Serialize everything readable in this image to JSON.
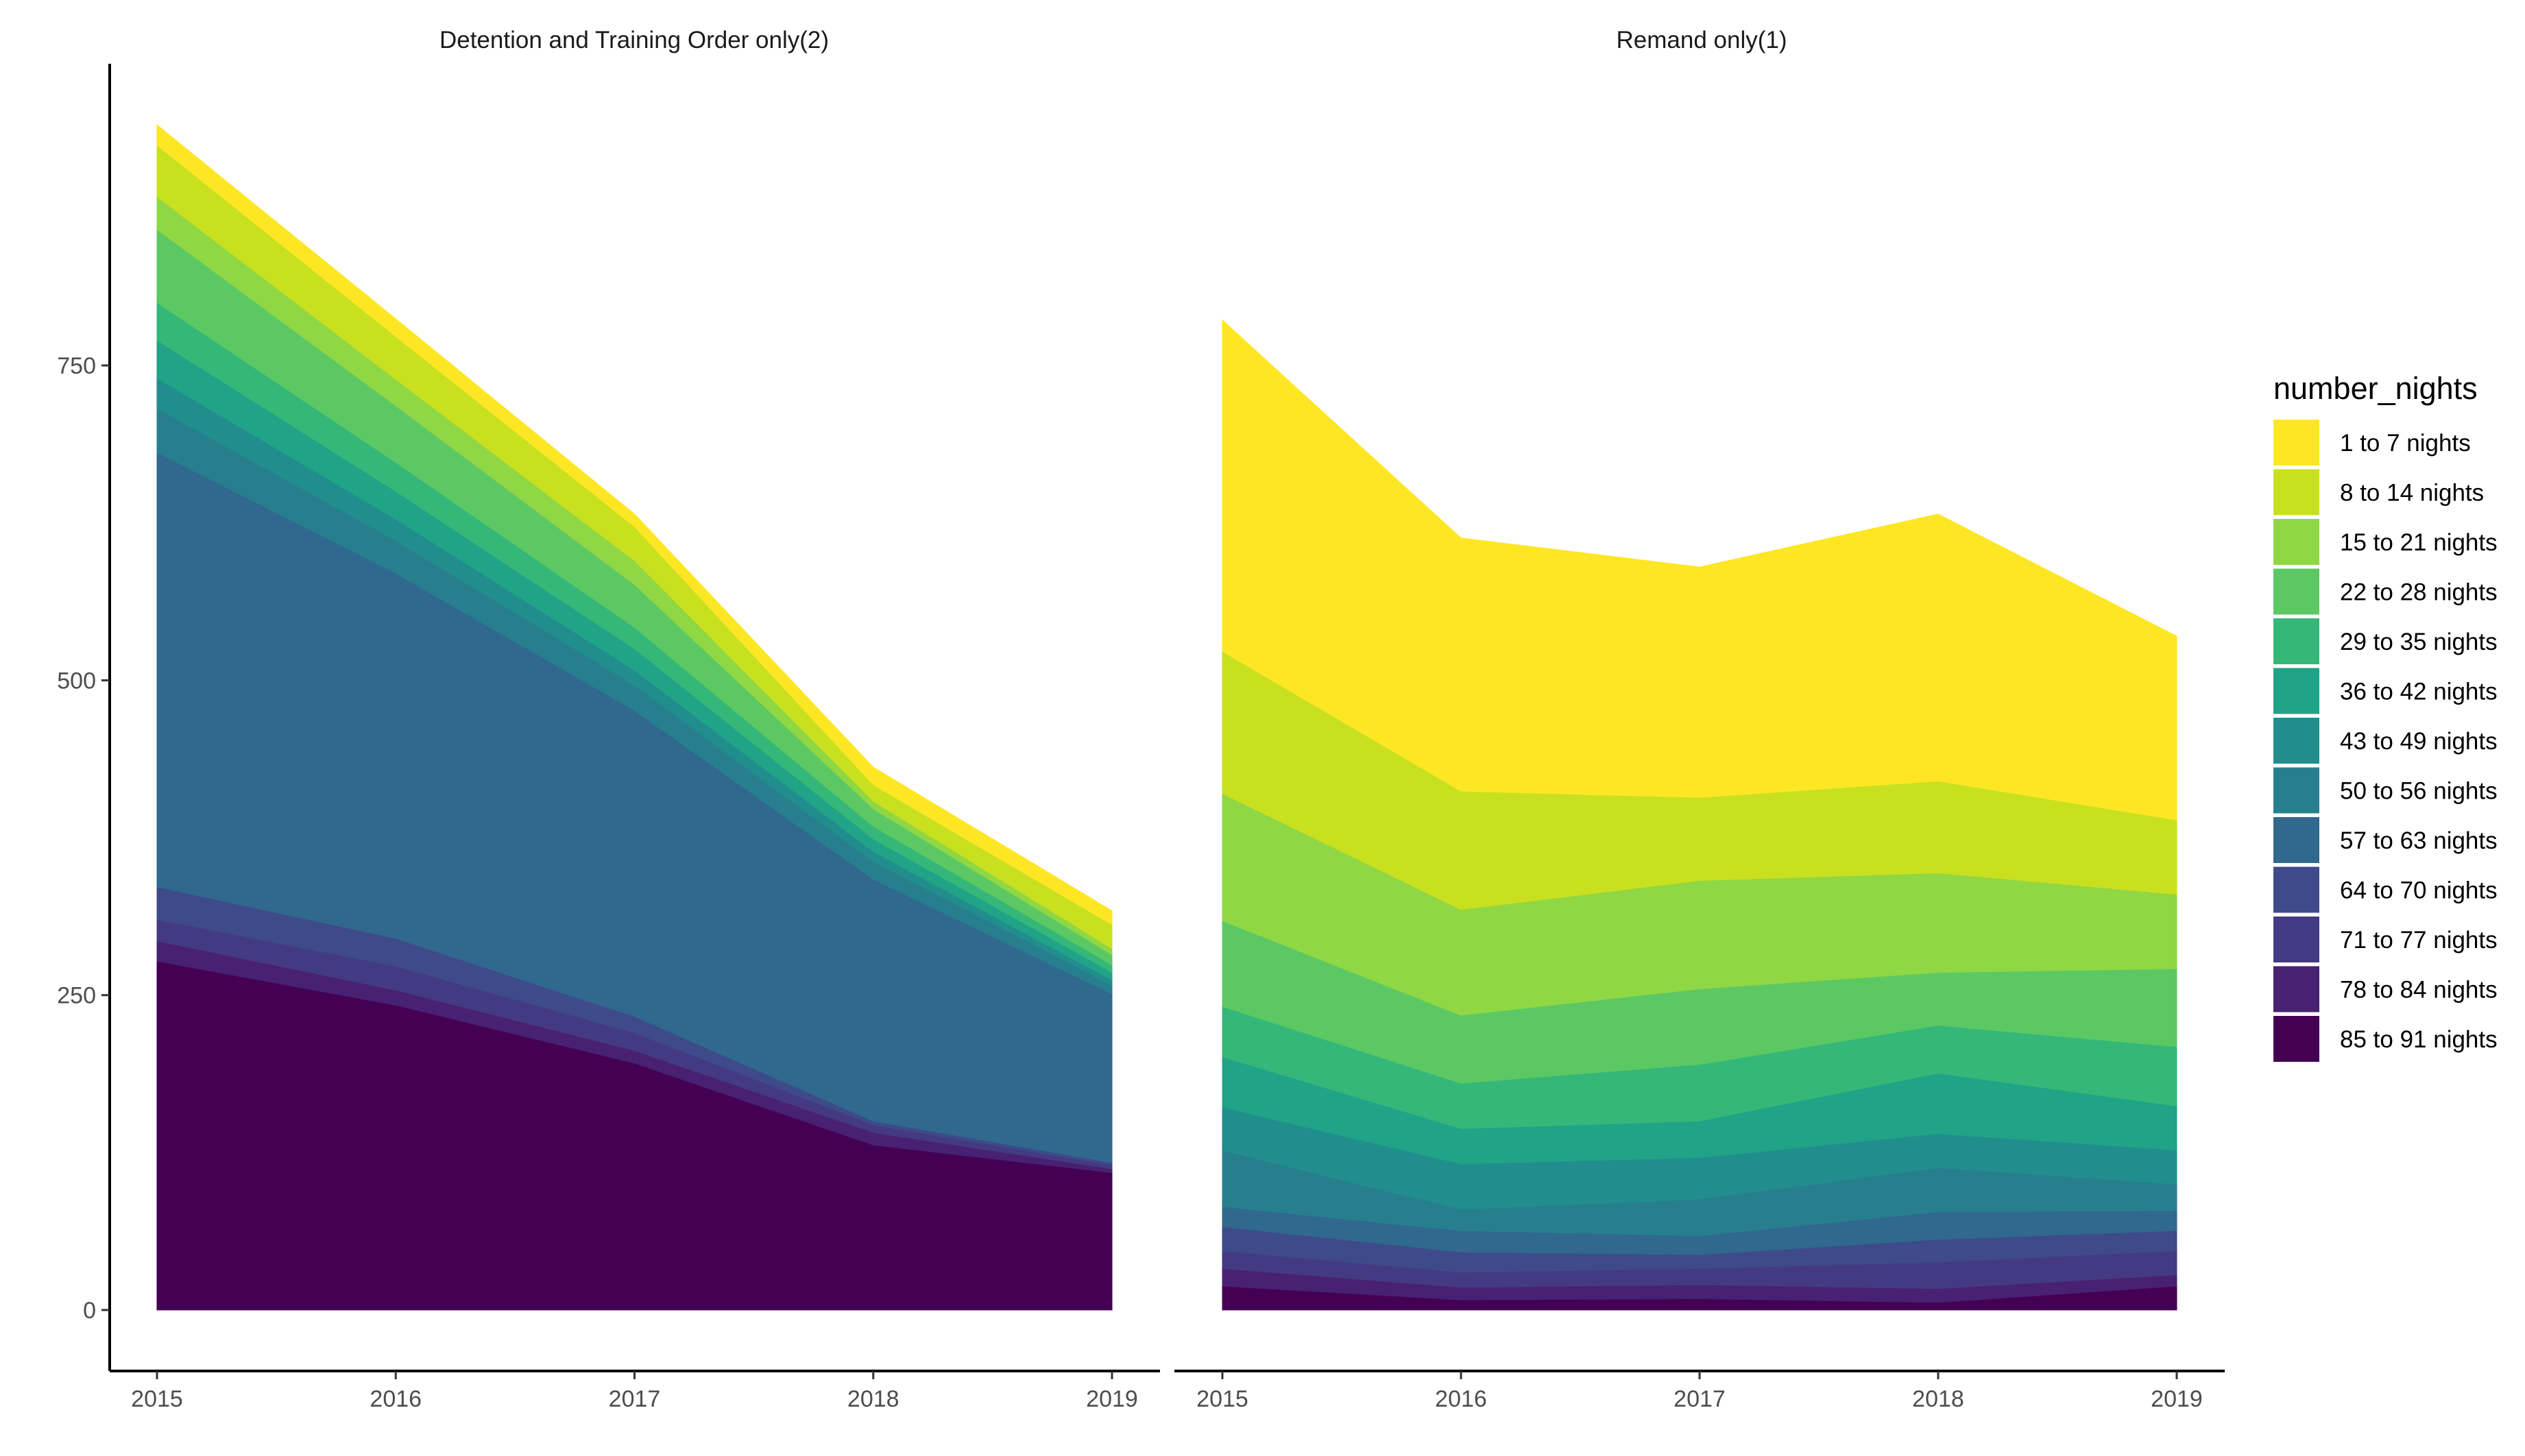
{
  "chart_data": {
    "type": "area",
    "stacked": true,
    "x": [
      2015,
      2016,
      2017,
      2018,
      2019
    ],
    "ylim": [
      0,
      960
    ],
    "yticks": [
      0,
      250,
      500,
      750
    ],
    "xlabel": "",
    "ylabel": "",
    "legend_title": "number_nights",
    "legend_position": "right",
    "legend": [
      {
        "name": "1 to 7 nights",
        "color": "#FDE725"
      },
      {
        "name": "8 to 14 nights",
        "color": "#C8E020"
      },
      {
        "name": "15 to 21 nights",
        "color": "#8FD744"
      },
      {
        "name": "22 to 28 nights",
        "color": "#5CC863"
      },
      {
        "name": "29 to 35 nights",
        "color": "#35B779"
      },
      {
        "name": "36 to 42 nights",
        "color": "#20A386"
      },
      {
        "name": "43 to 49 nights",
        "color": "#218E8D"
      },
      {
        "name": "50 to 56 nights",
        "color": "#277F8E"
      },
      {
        "name": "57 to 63 nights",
        "color": "#31688E"
      },
      {
        "name": "64 to 70 nights",
        "color": "#3E4A89"
      },
      {
        "name": "71 to 77 nights",
        "color": "#443A83"
      },
      {
        "name": "78 to 84 nights",
        "color": "#482173"
      },
      {
        "name": "85 to 91 nights",
        "color": "#440154"
      }
    ],
    "panels": [
      {
        "title": "Detention and Training Order only(2)",
        "series": [
          {
            "name": "85 to 91 nights",
            "values": [
              277,
              242,
              196,
              131,
              109
            ]
          },
          {
            "name": "78 to 84 nights",
            "values": [
              16,
              12,
              10,
              10,
              3
            ]
          },
          {
            "name": "71 to 77 nights",
            "values": [
              17,
              19,
              14,
              6,
              3
            ]
          },
          {
            "name": "64 to 70 nights",
            "values": [
              26,
              22,
              13,
              3,
              2
            ]
          },
          {
            "name": "57 to 63 nights",
            "values": [
              345,
              290,
              243,
              192,
              134
            ]
          },
          {
            "name": "50 to 56 nights",
            "values": [
              35,
              26,
              20,
              14,
              7
            ]
          },
          {
            "name": "43 to 49 nights",
            "values": [
              24,
              17,
              12,
              8,
              4
            ]
          },
          {
            "name": "36 to 42 nights",
            "values": [
              30,
              22,
              17,
              10,
              6
            ]
          },
          {
            "name": "29 to 35 nights",
            "values": [
              30,
              23,
              17,
              10,
              6
            ]
          },
          {
            "name": "22 to 28 nights",
            "values": [
              58,
              45,
              34,
              14,
              8
            ]
          },
          {
            "name": "15 to 21 nights",
            "values": [
              26,
              21,
              19,
              6,
              5
            ]
          },
          {
            "name": "8 to 14 nights",
            "values": [
              41,
              34,
              27,
              13,
              19
            ]
          },
          {
            "name": "1 to 7 nights",
            "values": [
              16,
              14,
              10,
              14,
              11
            ]
          }
        ]
      },
      {
        "title": "Remand only(1)",
        "series": [
          {
            "name": "85 to 91 nights",
            "values": [
              19,
              8,
              9,
              6,
              19
            ]
          },
          {
            "name": "78 to 84 nights",
            "values": [
              14,
              10,
              11,
              11,
              9
            ]
          },
          {
            "name": "71 to 77 nights",
            "values": [
              14,
              12,
              13,
              21,
              19
            ]
          },
          {
            "name": "64 to 70 nights",
            "values": [
              19,
              16,
              11,
              18,
              16
            ]
          },
          {
            "name": "57 to 63 nights",
            "values": [
              16,
              17,
              15,
              22,
              16
            ]
          },
          {
            "name": "50 to 56 nights",
            "values": [
              45,
              17,
              29,
              35,
              21
            ]
          },
          {
            "name": "43 to 49 nights",
            "values": [
              34,
              36,
              33,
              27,
              27
            ]
          },
          {
            "name": "36 to 42 nights",
            "values": [
              40,
              28,
              29,
              48,
              35
            ]
          },
          {
            "name": "29 to 35 nights",
            "values": [
              40,
              36,
              45,
              38,
              47
            ]
          },
          {
            "name": "22 to 28 nights",
            "values": [
              68,
              54,
              60,
              42,
              62
            ]
          },
          {
            "name": "15 to 21 nights",
            "values": [
              101,
              84,
              86,
              79,
              59
            ]
          },
          {
            "name": "8 to 14 nights",
            "values": [
              113,
              94,
              66,
              73,
              59
            ]
          },
          {
            "name": "1 to 7 nights",
            "values": [
              263,
              201,
              183,
              212,
              146
            ]
          }
        ]
      }
    ]
  }
}
